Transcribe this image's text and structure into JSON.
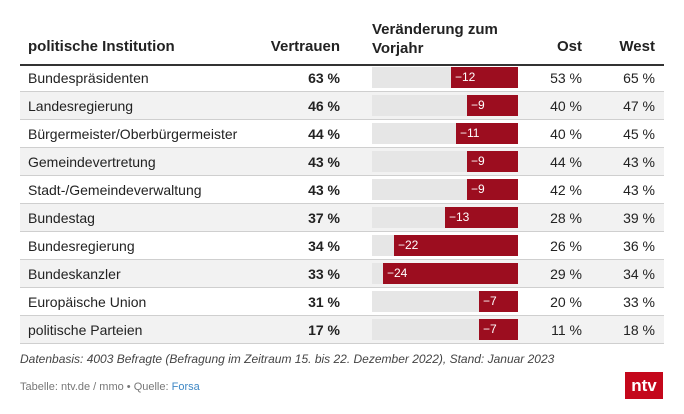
{
  "header": {
    "institution": "politische Institution",
    "trust": "Vertrauen",
    "change": "Veränderung zum Vorjahr",
    "east": "Ost",
    "west": "West"
  },
  "chart_data": {
    "type": "table",
    "columns": [
      "politische Institution",
      "Vertrauen",
      "Veränderung zum Vorjahr",
      "Ost",
      "West"
    ],
    "rows": [
      {
        "institution": "Bundespräsidenten",
        "trust": "63 %",
        "change": -12,
        "change_label": "−12",
        "east": "53 %",
        "west": "65 %"
      },
      {
        "institution": "Landesregierung",
        "trust": "46 %",
        "change": -9,
        "change_label": "−9",
        "east": "40 %",
        "west": "47 %"
      },
      {
        "institution": "Bürgermeister/Oberbürgermeister",
        "trust": "44 %",
        "change": -11,
        "change_label": "−11",
        "east": "40 %",
        "west": "45 %"
      },
      {
        "institution": "Gemeindevertretung",
        "trust": "43 %",
        "change": -9,
        "change_label": "−9",
        "east": "44 %",
        "west": "43 %"
      },
      {
        "institution": "Stadt-/Gemeindeverwaltung",
        "trust": "43 %",
        "change": -9,
        "change_label": "−9",
        "east": "42 %",
        "west": "43 %"
      },
      {
        "institution": "Bundestag",
        "trust": "37 %",
        "change": -13,
        "change_label": "−13",
        "east": "28 %",
        "west": "39 %"
      },
      {
        "institution": "Bundesregierung",
        "trust": "34 %",
        "change": -22,
        "change_label": "−22",
        "east": "26 %",
        "west": "36 %"
      },
      {
        "institution": "Bundeskanzler",
        "trust": "33 %",
        "change": -24,
        "change_label": "−24",
        "east": "29 %",
        "west": "34 %"
      },
      {
        "institution": "Europäische Union",
        "trust": "31 %",
        "change": -7,
        "change_label": "−7",
        "east": "20 %",
        "west": "33 %"
      },
      {
        "institution": "politische Parteien",
        "trust": "17 %",
        "change": -7,
        "change_label": "−7",
        "east": "11 %",
        "west": "18 %"
      }
    ],
    "change_range": [
      -26,
      0
    ]
  },
  "footer": {
    "note": "Datenbasis: 4003 Befragte (Befragung im Zeitraum 15. bis 22. Dezember 2022), Stand: Januar 2023",
    "source_prefix": "Tabelle: ntv.de / mmo • Quelle: ",
    "source_link": "Forsa",
    "logo": "ntv"
  },
  "colors": {
    "bar": "#9c0d1f",
    "bar_bg": "#e6e6e6",
    "logo": "#c4071b"
  }
}
